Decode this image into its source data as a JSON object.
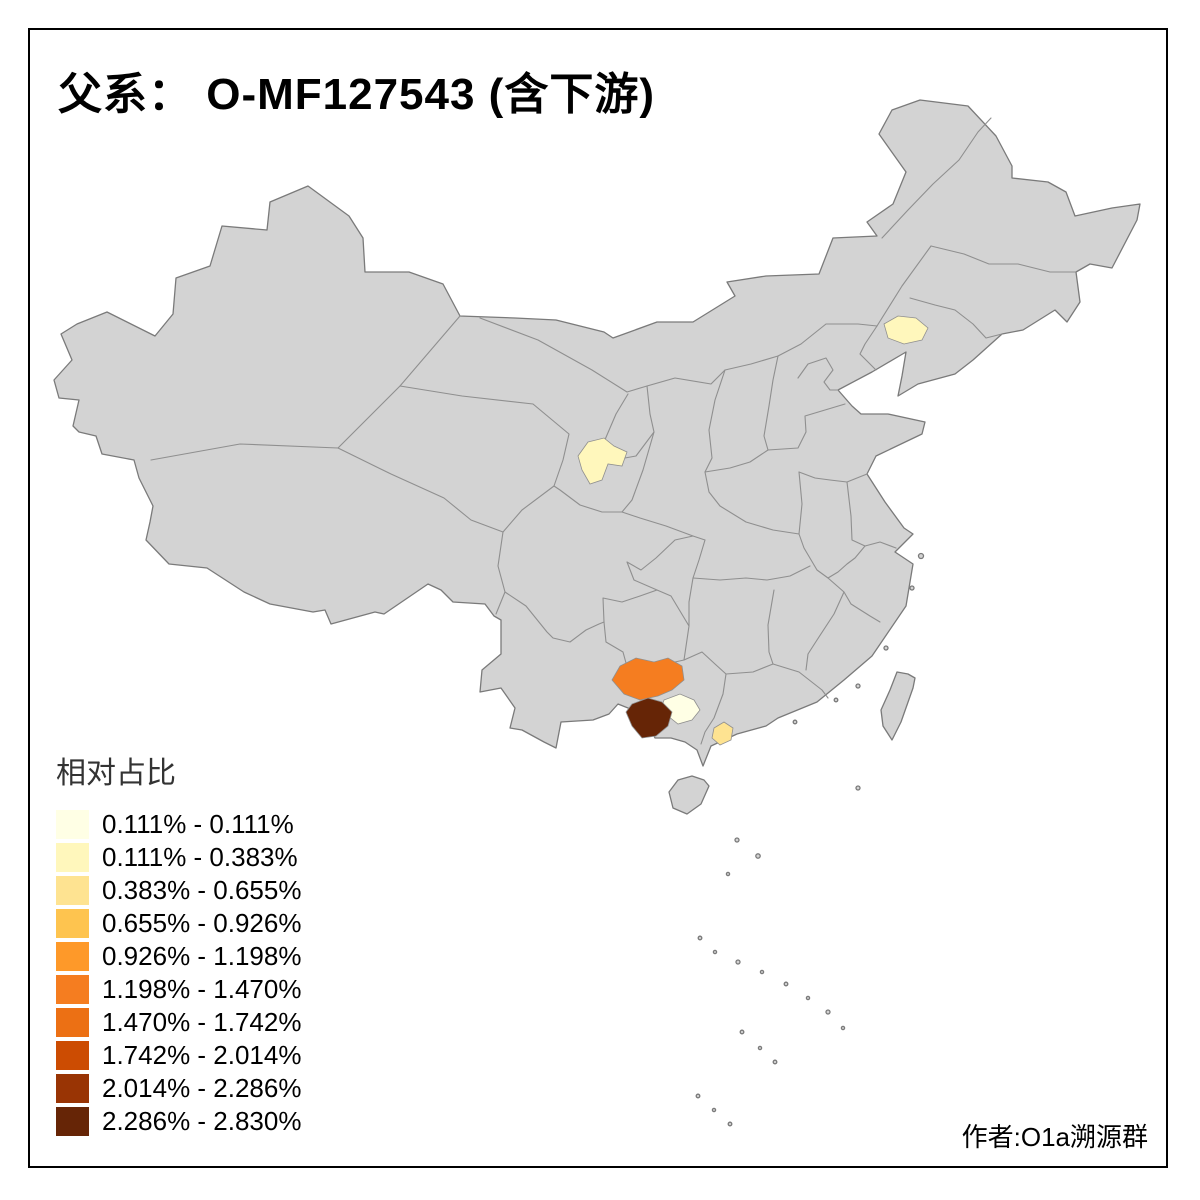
{
  "title": "父系： O-MF127543 (含下游)",
  "attribution": "作者:O1a溯源群",
  "legend": {
    "title": "相对占比",
    "items": [
      {
        "label": "0.111% - 0.111%",
        "color": "#FFFFE5"
      },
      {
        "label": "0.111% - 0.383%",
        "color": "#FFF7BC"
      },
      {
        "label": "0.383% - 0.655%",
        "color": "#FEE391"
      },
      {
        "label": "0.655% - 0.926%",
        "color": "#FEC44F"
      },
      {
        "label": "0.926% - 1.198%",
        "color": "#FE9929"
      },
      {
        "label": "1.198% - 1.470%",
        "color": "#F57D20"
      },
      {
        "label": "1.470% - 1.742%",
        "color": "#EC7014"
      },
      {
        "label": "1.742% - 2.014%",
        "color": "#CC4C02"
      },
      {
        "label": "2.014% - 2.286%",
        "color": "#993404"
      },
      {
        "label": "2.286% - 2.830%",
        "color": "#662506"
      }
    ]
  },
  "map": {
    "background_color": "#FFFFFF",
    "land_color": "#D3D3D3",
    "province_border_color": "#8F8F8F",
    "outline_color": "#7A7A7A",
    "highlighted_regions": [
      {
        "id": "northeast-liaoning-patch",
        "value_class": "0.111% - 0.383%",
        "color": "#FFF7BC"
      },
      {
        "id": "gansu-central-patch",
        "value_class": "0.111% - 0.383%",
        "color": "#FFF7BC"
      },
      {
        "id": "southwest-orange-patch",
        "value_class": "1.198% - 1.470%",
        "color": "#F57D20"
      },
      {
        "id": "southwest-pale-patch",
        "value_class": "0.111% - 0.111%",
        "color": "#FFFFE5"
      },
      {
        "id": "southwest-dark-patch",
        "value_class": "2.286% - 2.830%",
        "color": "#662506"
      },
      {
        "id": "guangxi-coast-patch",
        "value_class": "0.383% - 0.655%",
        "color": "#FEE391"
      }
    ]
  }
}
